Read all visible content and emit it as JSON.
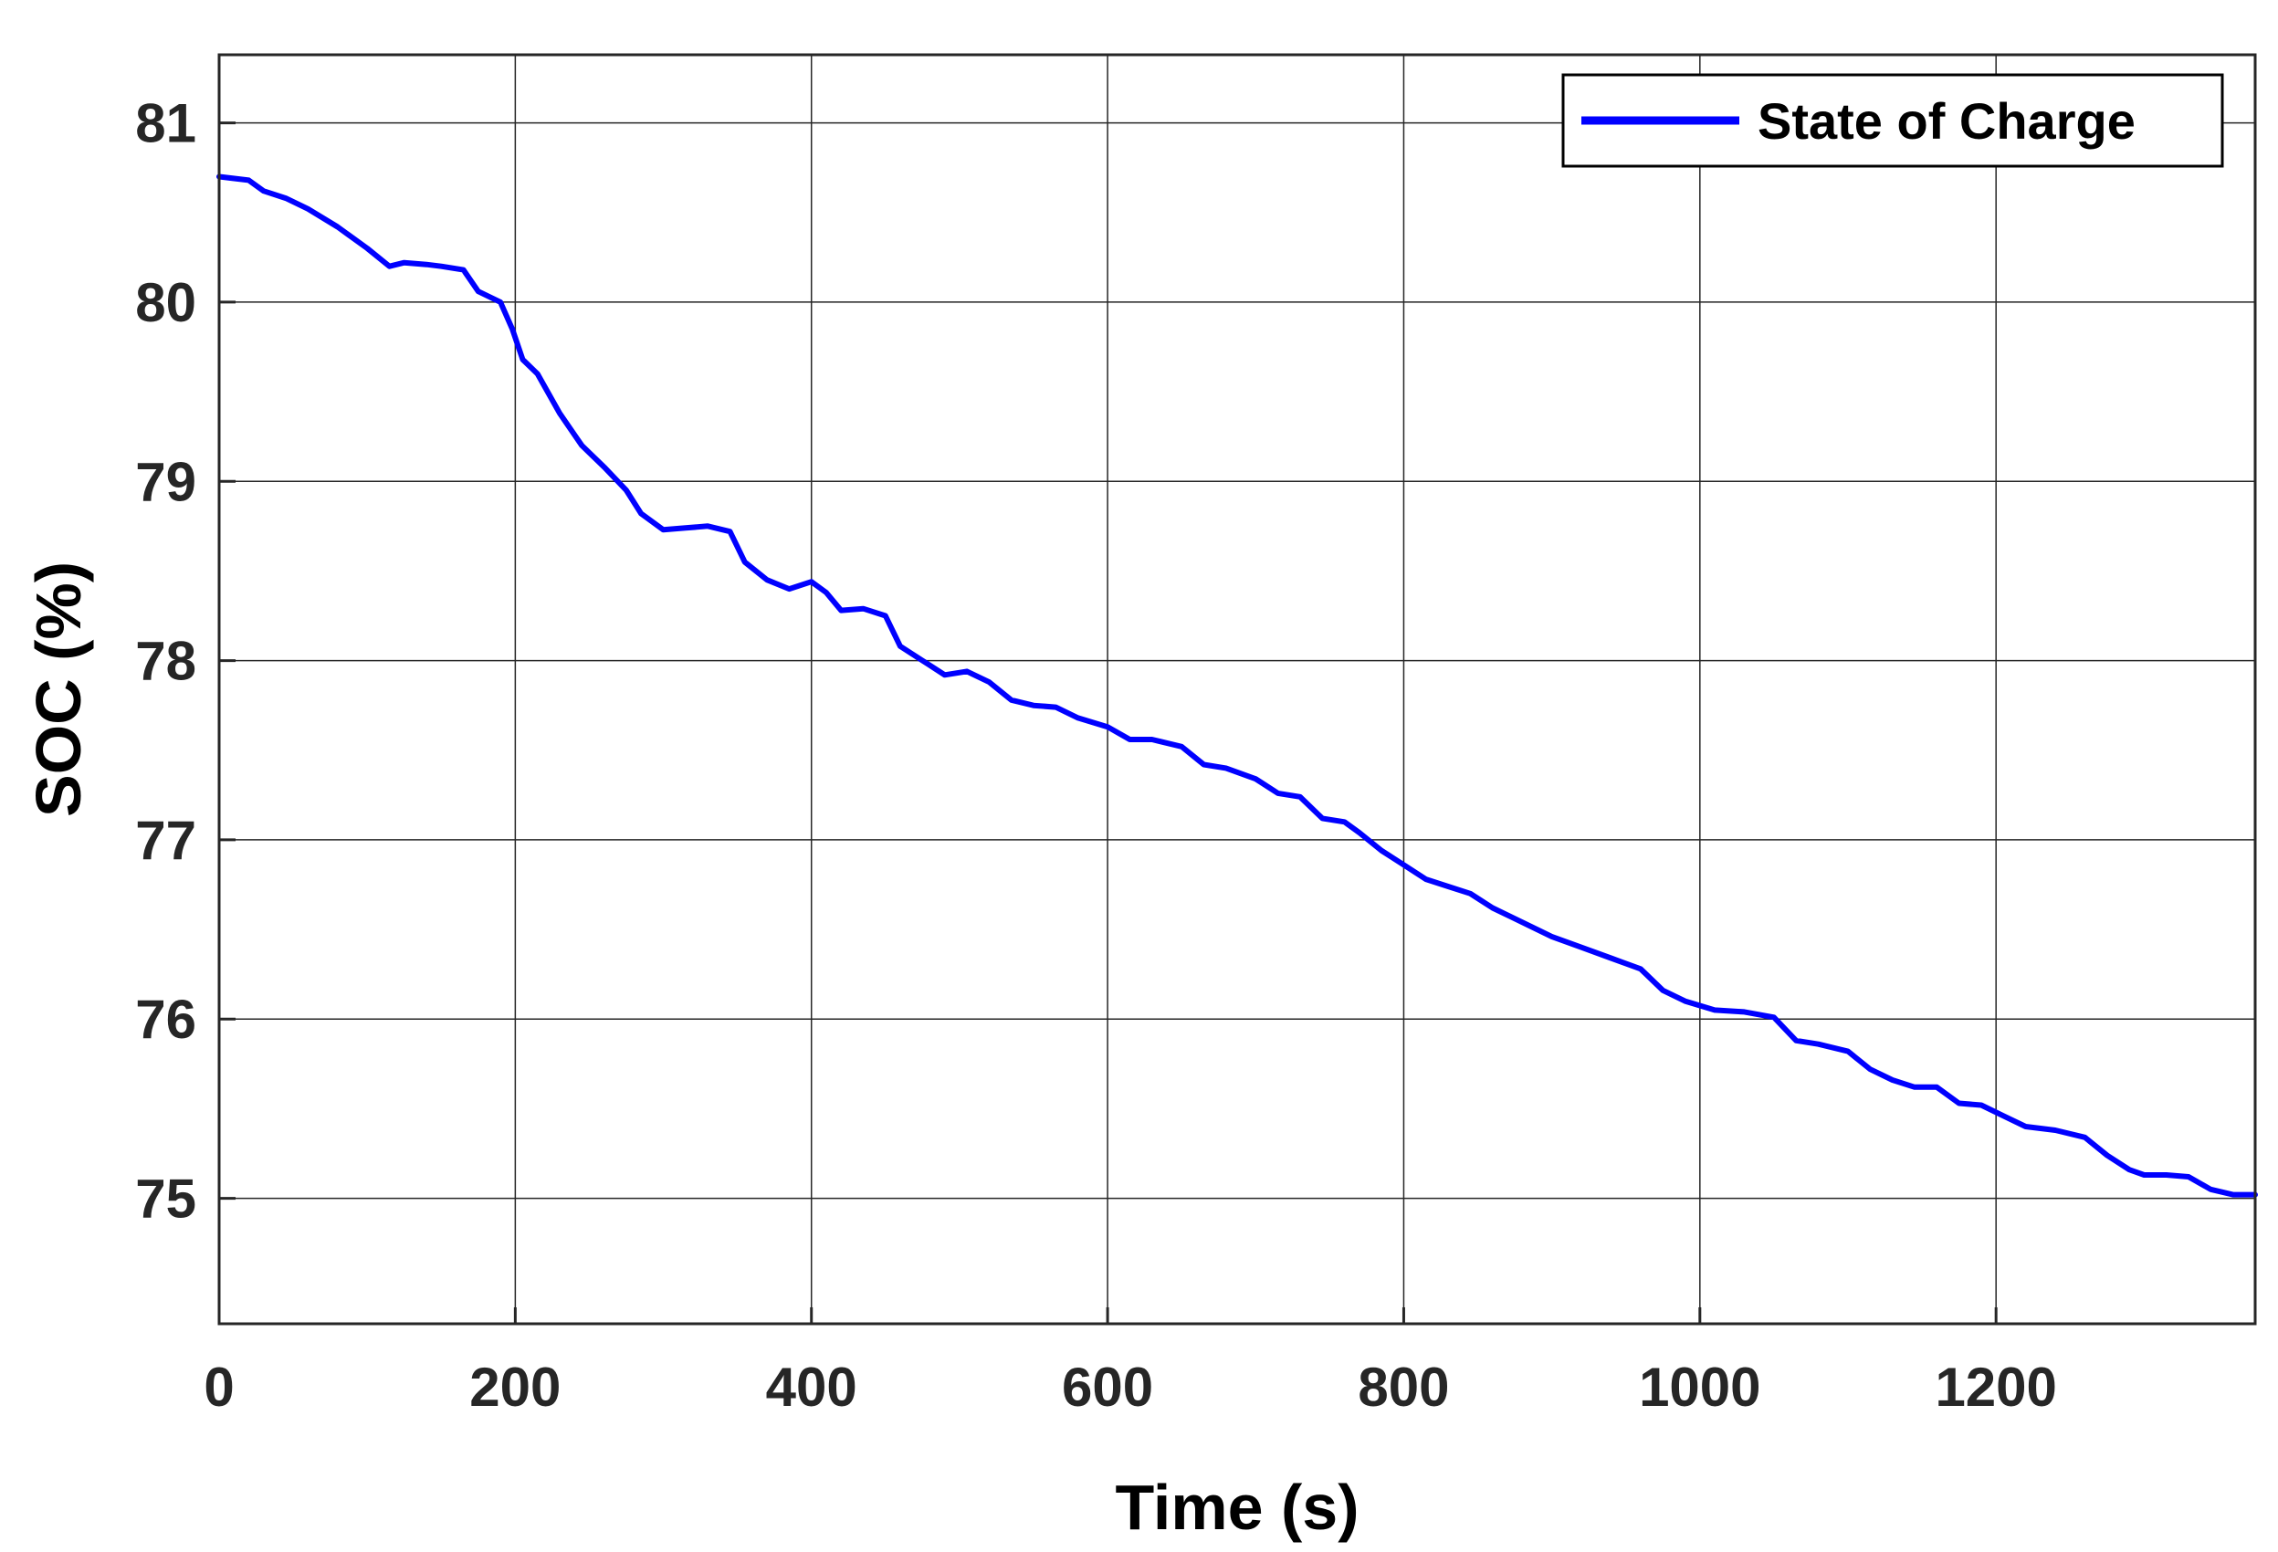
{
  "chart_data": {
    "type": "line",
    "xlabel": "Time (s)",
    "ylabel": "SOC (%)",
    "xlim": [
      0,
      1375
    ],
    "ylim": [
      74.3,
      81.38
    ],
    "xticks": [
      0,
      200,
      400,
      600,
      800,
      1000,
      1200
    ],
    "yticks": [
      75,
      76,
      77,
      78,
      79,
      80,
      81
    ],
    "xtick_labels": [
      "0",
      "200",
      "400",
      "600",
      "800",
      "1000",
      "1200"
    ],
    "ytick_labels": [
      "75",
      "76",
      "77",
      "78",
      "79",
      "80",
      "81"
    ],
    "grid": true,
    "legend_position": "top-right",
    "series": [
      {
        "name": "State of Charge",
        "color": "#0000ff",
        "points": [
          [
            0,
            80.7
          ],
          [
            20,
            80.68
          ],
          [
            30,
            80.62
          ],
          [
            45,
            80.58
          ],
          [
            60,
            80.52
          ],
          [
            80,
            80.42
          ],
          [
            100,
            80.3
          ],
          [
            115,
            80.2
          ],
          [
            125,
            80.22
          ],
          [
            140,
            80.21
          ],
          [
            150,
            80.2
          ],
          [
            165,
            80.18
          ],
          [
            175,
            80.06
          ],
          [
            190,
            80.0
          ],
          [
            198,
            79.85
          ],
          [
            205,
            79.68
          ],
          [
            215,
            79.6
          ],
          [
            230,
            79.38
          ],
          [
            245,
            79.2
          ],
          [
            260,
            79.08
          ],
          [
            275,
            78.95
          ],
          [
            285,
            78.82
          ],
          [
            300,
            78.73
          ],
          [
            315,
            78.74
          ],
          [
            330,
            78.75
          ],
          [
            345,
            78.72
          ],
          [
            355,
            78.55
          ],
          [
            370,
            78.45
          ],
          [
            385,
            78.4
          ],
          [
            400,
            78.44
          ],
          [
            410,
            78.38
          ],
          [
            420,
            78.28
          ],
          [
            435,
            78.29
          ],
          [
            450,
            78.25
          ],
          [
            460,
            78.08
          ],
          [
            475,
            78.0
          ],
          [
            490,
            77.92
          ],
          [
            505,
            77.94
          ],
          [
            520,
            77.88
          ],
          [
            535,
            77.78
          ],
          [
            550,
            77.75
          ],
          [
            565,
            77.74
          ],
          [
            580,
            77.68
          ],
          [
            600,
            77.63
          ],
          [
            615,
            77.56
          ],
          [
            630,
            77.56
          ],
          [
            650,
            77.52
          ],
          [
            665,
            77.42
          ],
          [
            680,
            77.4
          ],
          [
            700,
            77.34
          ],
          [
            715,
            77.26
          ],
          [
            730,
            77.24
          ],
          [
            745,
            77.12
          ],
          [
            760,
            77.1
          ],
          [
            770,
            77.04
          ],
          [
            785,
            76.94
          ],
          [
            800,
            76.86
          ],
          [
            815,
            76.78
          ],
          [
            830,
            76.74
          ],
          [
            845,
            76.7
          ],
          [
            860,
            76.62
          ],
          [
            880,
            76.54
          ],
          [
            900,
            76.46
          ],
          [
            920,
            76.4
          ],
          [
            940,
            76.34
          ],
          [
            960,
            76.28
          ],
          [
            975,
            76.16
          ],
          [
            990,
            76.1
          ],
          [
            1010,
            76.05
          ],
          [
            1030,
            76.04
          ],
          [
            1050,
            76.01
          ],
          [
            1065,
            75.88
          ],
          [
            1080,
            75.86
          ],
          [
            1100,
            75.82
          ],
          [
            1115,
            75.72
          ],
          [
            1130,
            75.66
          ],
          [
            1145,
            75.62
          ],
          [
            1160,
            75.62
          ],
          [
            1175,
            75.53
          ],
          [
            1190,
            75.52
          ],
          [
            1205,
            75.46
          ],
          [
            1220,
            75.4
          ],
          [
            1240,
            75.38
          ],
          [
            1260,
            75.34
          ],
          [
            1275,
            75.24
          ],
          [
            1290,
            75.16
          ],
          [
            1300,
            75.13
          ],
          [
            1315,
            75.13
          ],
          [
            1330,
            75.12
          ],
          [
            1345,
            75.05
          ],
          [
            1360,
            75.02
          ],
          [
            1375,
            75.02
          ]
        ]
      }
    ]
  }
}
